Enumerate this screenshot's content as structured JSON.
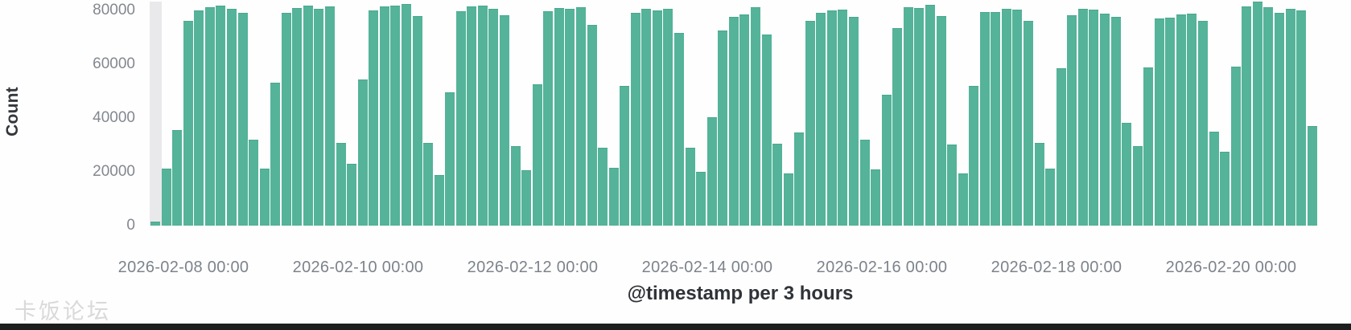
{
  "watermark": "卡饭论坛",
  "chart_data": {
    "type": "bar",
    "title": "",
    "xlabel": "@timestamp per 3 hours",
    "ylabel": "Count",
    "interval": "3 hours",
    "x_start": "2026-02-07 15:00",
    "ylim": [
      0,
      84000
    ],
    "y_ticks": [
      0,
      20000,
      40000,
      60000,
      80000
    ],
    "x_tick_labels": [
      "2026-02-08 00:00",
      "2026-02-10 00:00",
      "2026-02-12 00:00",
      "2026-02-14 00:00",
      "2026-02-16 00:00",
      "2026-02-18 00:00",
      "2026-02-20 00:00"
    ],
    "grid": false,
    "legend": false,
    "bar_color": "#54b399",
    "partial_bucket_color": "#e9e9eb",
    "values": [
      1500,
      21200,
      35400,
      76200,
      80100,
      81300,
      81700,
      80700,
      79000,
      32000,
      21200,
      53200,
      79000,
      81000,
      81700,
      80700,
      81500,
      30600,
      23000,
      54200,
      80000,
      81500,
      81700,
      82300,
      78000,
      30600,
      18900,
      49700,
      79600,
      81500,
      81900,
      80500,
      78300,
      29500,
      20600,
      52400,
      79800,
      80900,
      80500,
      81200,
      74600,
      29100,
      21500,
      51800,
      79000,
      80500,
      80000,
      80700,
      71600,
      29100,
      20000,
      40400,
      72400,
      77500,
      78500,
      81200,
      70900,
      30500,
      19400,
      34500,
      76000,
      79000,
      80000,
      80300,
      77500,
      32000,
      20900,
      48700,
      73400,
      81300,
      81000,
      82000,
      78000,
      30000,
      19400,
      51800,
      79300,
      79500,
      80700,
      80300,
      76000,
      30800,
      21100,
      58500,
      78300,
      80500,
      80300,
      78700,
      77700,
      38100,
      29500,
      58800,
      77000,
      77300,
      78500,
      78800,
      76000,
      35000,
      27500,
      59100,
      81500,
      83300,
      81300,
      79000,
      80500,
      80000,
      37100
    ]
  }
}
